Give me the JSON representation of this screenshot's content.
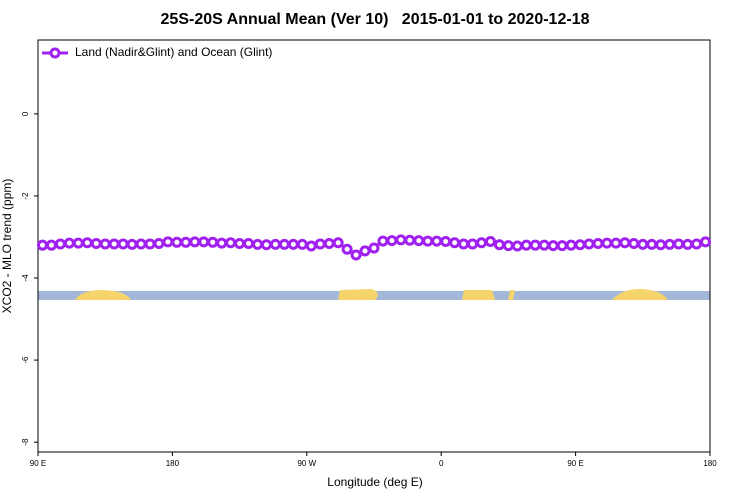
{
  "chart_data": {
    "type": "line",
    "title": "25S-20S Annual Mean (Ver 10)   2015-01-01 to 2020-12-18",
    "x_label": "Longitude (deg E)",
    "y_label": "XCO2 - MLO trend (ppm)",
    "xlim": [
      90,
      540
    ],
    "ylim": [
      -8.24,
      1.8
    ],
    "xticks": [
      {
        "value": 90,
        "label": "90 E"
      },
      {
        "value": 180,
        "label": "180"
      },
      {
        "value": 270,
        "label": "90 W"
      },
      {
        "value": 360,
        "label": "0"
      },
      {
        "value": 450,
        "label": "90 E"
      },
      {
        "value": 540,
        "label": "180"
      }
    ],
    "yticks": [
      0,
      -2,
      -4,
      -6,
      -8
    ],
    "legend": "top-left",
    "x": [
      93,
      99,
      105,
      111,
      117,
      123,
      129,
      135,
      141,
      147,
      153,
      159,
      165,
      171,
      177,
      183,
      189,
      195,
      201,
      207,
      213,
      219,
      225,
      231,
      237,
      243,
      249,
      255,
      261,
      267,
      273,
      279,
      285,
      291,
      297,
      303,
      309,
      315,
      321,
      327,
      333,
      339,
      345,
      351,
      357,
      363,
      369,
      375,
      381,
      387,
      393,
      399,
      405,
      411,
      417,
      423,
      429,
      435,
      441,
      447,
      453,
      459,
      465,
      471,
      477,
      483,
      489,
      495,
      501,
      507,
      513,
      519,
      525,
      531,
      537
    ],
    "series": [
      {
        "name": "Land (Nadir&Glint) and Ocean (Glint)",
        "color": "#a020f0",
        "values": [
          -3.2,
          -3.2,
          -3.17,
          -3.15,
          -3.15,
          -3.14,
          -3.16,
          -3.17,
          -3.17,
          -3.17,
          -3.18,
          -3.17,
          -3.17,
          -3.16,
          -3.12,
          -3.13,
          -3.13,
          -3.12,
          -3.12,
          -3.13,
          -3.15,
          -3.14,
          -3.16,
          -3.16,
          -3.18,
          -3.19,
          -3.18,
          -3.18,
          -3.18,
          -3.18,
          -3.22,
          -3.17,
          -3.16,
          -3.14,
          -3.3,
          -3.44,
          -3.34,
          -3.27,
          -3.1,
          -3.09,
          -3.07,
          -3.08,
          -3.09,
          -3.1,
          -3.1,
          -3.11,
          -3.14,
          -3.17,
          -3.17,
          -3.14,
          -3.11,
          -3.19,
          -3.21,
          -3.22,
          -3.2,
          -3.2,
          -3.2,
          -3.21,
          -3.21,
          -3.2,
          -3.19,
          -3.17,
          -3.16,
          -3.15,
          -3.15,
          -3.14,
          -3.16,
          -3.18,
          -3.18,
          -3.19,
          -3.18,
          -3.17,
          -3.18,
          -3.17,
          -3.12
        ]
      }
    ]
  }
}
